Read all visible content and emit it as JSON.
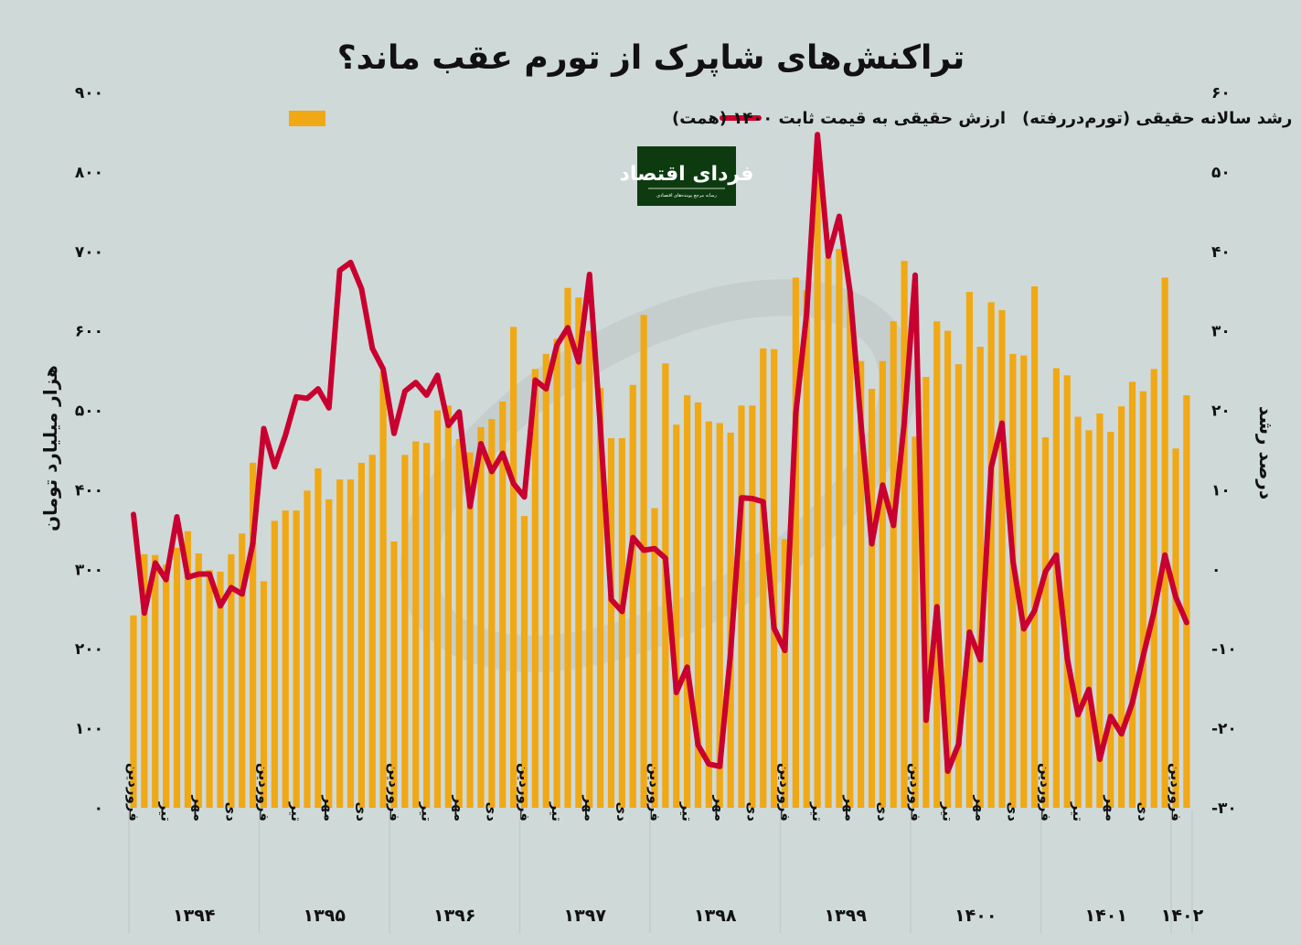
{
  "title": "تراکنش‌های شاپرک از تورم عقب ماند؟",
  "logo": {
    "text": "فردای اقتصاد",
    "subtext": "رسانه مرجع پوینده‌های اقتصادی",
    "bg": "#0d3b0f"
  },
  "colors": {
    "bars": "#f0a814",
    "line": "#c9002f",
    "background": "#cfd9d8"
  },
  "chart_data": {
    "type": "bar+line",
    "title": "تراکنش‌های شاپرک از تورم عقب ماند؟",
    "legend_position": "top",
    "grid": false,
    "ylabel_left": "هزار میلیارد تومان",
    "ylabel_right": "درصد رشد",
    "ylim_left": [
      0,
      900
    ],
    "ylim_right": [
      -30,
      60
    ],
    "yticks_left": [
      "۰",
      "۱۰۰",
      "۲۰۰",
      "۳۰۰",
      "۴۰۰",
      "۵۰۰",
      "۶۰۰",
      "۷۰۰",
      "۸۰۰",
      "۹۰۰"
    ],
    "yticks_right": [
      "-۳۰",
      "-۲۰",
      "-۱۰",
      "۰",
      "۱۰",
      "۲۰",
      "۳۰",
      "۴۰",
      "۵۰",
      "۶۰"
    ],
    "month_tick_labels": [
      "فروردین",
      "تیر",
      "مهر",
      "دی"
    ],
    "years": [
      "۱۳۹۴",
      "۱۳۹۵",
      "۱۳۹۶",
      "۱۳۹۷",
      "۱۳۹۸",
      "۱۳۹۹",
      "۱۴۰۰",
      "۱۴۰۱",
      "۱۴۰۲"
    ],
    "series": [
      {
        "name": "ارزش حقیقی به قیمت ثابت ۱۴۰۰ (همت)",
        "type": "bar",
        "axis": "left",
        "values": [
          242,
          319,
          318,
          306,
          327,
          348,
          320,
          299,
          297,
          319,
          345,
          434,
          285,
          361,
          374,
          374,
          399,
          427,
          388,
          413,
          413,
          434,
          444,
          548,
          335,
          444,
          461,
          459,
          500,
          506,
          464,
          447,
          479,
          489,
          511,
          605,
          367,
          552,
          571,
          590,
          654,
          642,
          600,
          528,
          465,
          465,
          532,
          620,
          377,
          559,
          482,
          519,
          510,
          486,
          484,
          472,
          506,
          506,
          578,
          577,
          338,
          667,
          651,
          797,
          692,
          703,
          649,
          562,
          527,
          562,
          612,
          688,
          467,
          542,
          612,
          600,
          558,
          649,
          580,
          636,
          626,
          571,
          569,
          656,
          466,
          553,
          544,
          492,
          475,
          496,
          473,
          505,
          536,
          524,
          552,
          667,
          452,
          519
        ]
      },
      {
        "name": "رشد سالانه حقیقی (تورم‌دررفته)",
        "type": "line",
        "axis": "right",
        "values": [
          6.9,
          -5.5,
          0.8,
          -1.3,
          6.6,
          -1.0,
          -0.6,
          -0.6,
          -4.6,
          -2.3,
          -3.1,
          3.3,
          17.7,
          12.9,
          16.9,
          21.7,
          21.5,
          22.7,
          20.3,
          37.6,
          38.6,
          35.3,
          27.8,
          25.2,
          17.1,
          22.4,
          23.5,
          21.9,
          24.4,
          18.1,
          19.8,
          7.9,
          15.8,
          12.3,
          14.6,
          10.8,
          9.1,
          23.8,
          22.7,
          28.2,
          30.4,
          26.1,
          37.1,
          18,
          -3.8,
          -5.3,
          4.0,
          2.4,
          2.6,
          1.4,
          -15.5,
          -12.3,
          -22.1,
          -24.5,
          -24.8,
          -10.5,
          9.0,
          8.9,
          8.5,
          -7.4,
          -10.2,
          19.6,
          32.2,
          54.7,
          39.4,
          44.4,
          34.9,
          18.5,
          3.2,
          10.6,
          5.5,
          18.5,
          37.0,
          -19.0,
          -4.7,
          -25.4,
          -22.0,
          -7.9,
          -11.4,
          12.8,
          18.4,
          1.1,
          -7.5,
          -5.2,
          -0.3,
          1.8,
          -11.2,
          -18.3,
          -15.1,
          -23.9,
          -18.5,
          -20.7,
          -16.8,
          -10.9,
          -5.3,
          1.8,
          -3.5,
          -6.7
        ]
      }
    ]
  }
}
